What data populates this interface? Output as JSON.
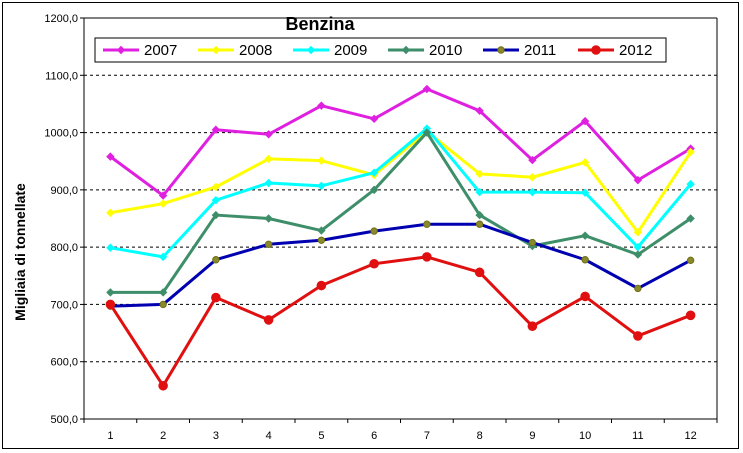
{
  "chart_data": {
    "type": "line",
    "title": "Benzina",
    "ylabel": "Migliaia di tonnellate",
    "xlabel": "",
    "categories": [
      "1",
      "2",
      "3",
      "4",
      "5",
      "6",
      "7",
      "8",
      "9",
      "10",
      "11",
      "12"
    ],
    "ylim": [
      500,
      1200
    ],
    "yticks": [
      "500,0",
      "600,0",
      "700,0",
      "800,0",
      "900,0",
      "1000,0",
      "1100,0",
      "1200,0"
    ],
    "grid": "horizontal-dashed",
    "legend_placement": "top",
    "series": [
      {
        "name": "2007",
        "color": "#e020e0",
        "marker": "diamond",
        "values": [
          958,
          890,
          1005,
          997,
          1047,
          1024,
          1076,
          1038,
          952,
          1020,
          917,
          972
        ]
      },
      {
        "name": "2008",
        "color": "#ffff00",
        "marker": "diamond",
        "values": [
          860,
          876,
          905,
          954,
          951,
          926,
          1002,
          928,
          922,
          948,
          826,
          966
        ]
      },
      {
        "name": "2009",
        "color": "#00ffff",
        "marker": "diamond",
        "values": [
          799,
          783,
          882,
          912,
          907,
          930,
          1007,
          896,
          896,
          895,
          800,
          910
        ]
      },
      {
        "name": "2010",
        "color": "#3e8e6a",
        "marker": "diamond",
        "values": [
          721,
          721,
          856,
          850,
          829,
          900,
          1000,
          856,
          802,
          820,
          787,
          850
        ]
      },
      {
        "name": "2011",
        "color": "#0000b0",
        "marker": "olive-dot",
        "values": [
          697,
          700,
          778,
          805,
          812,
          828,
          840,
          840,
          808,
          778,
          728,
          777
        ]
      },
      {
        "name": "2012",
        "color": "#e01010",
        "marker": "dot",
        "values": [
          700,
          558,
          712,
          673,
          733,
          771,
          783,
          756,
          662,
          714,
          645,
          681
        ]
      }
    ]
  }
}
